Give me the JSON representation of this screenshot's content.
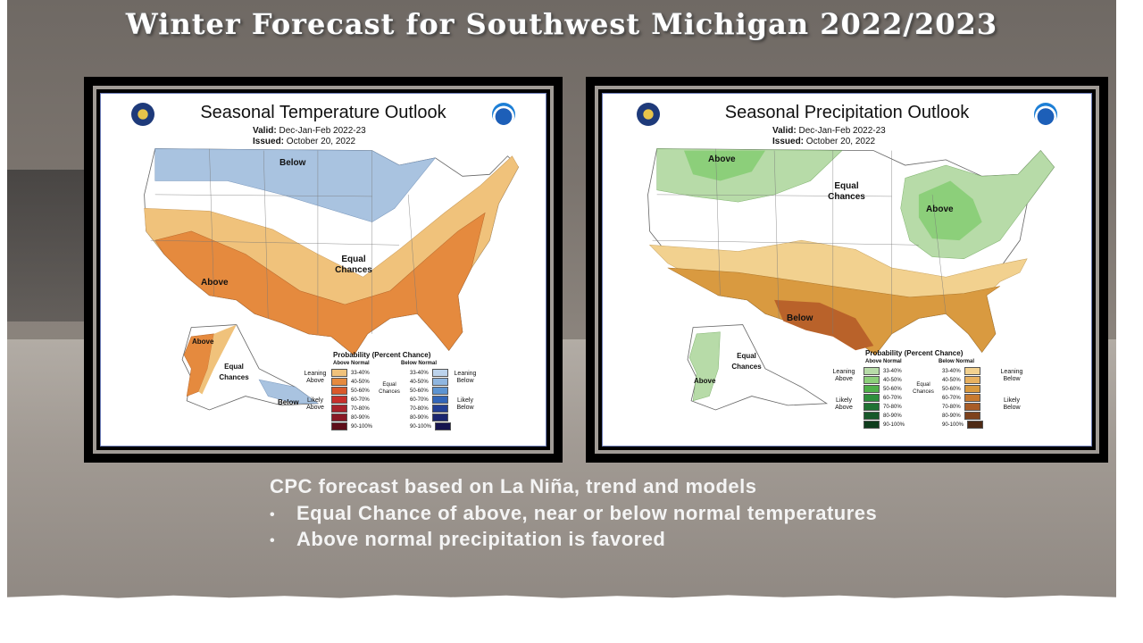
{
  "title": "Winter Forecast  for Southwest Michigan 2022/2023",
  "temperature_map": {
    "title": "Seasonal Temperature Outlook",
    "valid_label": "Valid:",
    "valid_value": "Dec-Jan-Feb 2022-23",
    "issued_label": "Issued:",
    "issued_value": "October 20, 2022",
    "regions": {
      "below_north": "Below",
      "equal_chances": "Equal Chances",
      "above_south": "Above",
      "alaska_above": "Above",
      "alaska_equal": "Equal Chances",
      "alaska_below": "Below"
    },
    "colors": {
      "above_light": "#f0c27b",
      "above_mid": "#e58a3e",
      "below_light": "#a9c3e0",
      "land": "#ffffff"
    }
  },
  "precipitation_map": {
    "title": "Seasonal Precipitation Outlook",
    "valid_label": "Valid:",
    "valid_value": "Dec-Jan-Feb 2022-23",
    "issued_label": "Issued:",
    "issued_value": "October 20, 2022",
    "regions": {
      "above_north": "Above",
      "equal_chances": "Equal Chances",
      "above_great_lakes": "Above",
      "below_south": "Below",
      "alaska_equal": "Equal Chances",
      "alaska_above": "Above"
    },
    "colors": {
      "above_light": "#b7dba8",
      "above_mid": "#6fbf60",
      "below_light": "#f2d18f",
      "below_mid": "#d99a40",
      "below_dark": "#b9622a"
    }
  },
  "legend_temperature": {
    "title": "Probability (Percent Chance)",
    "left_head": "Above Normal",
    "right_head": "Below Normal",
    "ranges": [
      "33-40%",
      "40-50%",
      "50-60%",
      "60-70%",
      "70-80%",
      "80-90%",
      "90-100%"
    ],
    "left_colors": [
      "#f0c27b",
      "#e58a3e",
      "#d9592b",
      "#c7302b",
      "#a8232b",
      "#8a1a26",
      "#5e0f1a"
    ],
    "right_colors": [
      "#bcd3ec",
      "#8fb6e0",
      "#5d94d1",
      "#3366b8",
      "#233f94",
      "#1b2670",
      "#16144f"
    ],
    "leaning_above": "Leaning Above",
    "likely_above": "Likely Above",
    "leaning_below": "Leaning Below",
    "likely_below": "Likely Below",
    "equal_chances": "Equal Chances"
  },
  "legend_precipitation": {
    "title": "Probability (Percent Chance)",
    "left_head": "Above Normal",
    "right_head": "Below Normal",
    "ranges": [
      "33-40%",
      "40-50%",
      "50-60%",
      "60-70%",
      "70-80%",
      "80-90%",
      "90-100%"
    ],
    "left_colors": [
      "#b7dba8",
      "#8ccf7a",
      "#4fb04a",
      "#2e8f3c",
      "#1f7233",
      "#17582a",
      "#0f3d1d"
    ],
    "right_colors": [
      "#f2d18f",
      "#e8b160",
      "#d99a40",
      "#c77a30",
      "#a85c27",
      "#7d421d",
      "#4e2a15"
    ],
    "leaning_above": "Leaning Above",
    "likely_above": "Likely Above",
    "leaning_below": "Leaning Below",
    "likely_below": "Likely Below",
    "equal_chances": "Equal Chances"
  },
  "caption": "CPC forecast based on La Niña, trend and models",
  "bullets": [
    "Equal Chance of above, near or below normal temperatures",
    "Above normal precipitation is favored"
  ]
}
